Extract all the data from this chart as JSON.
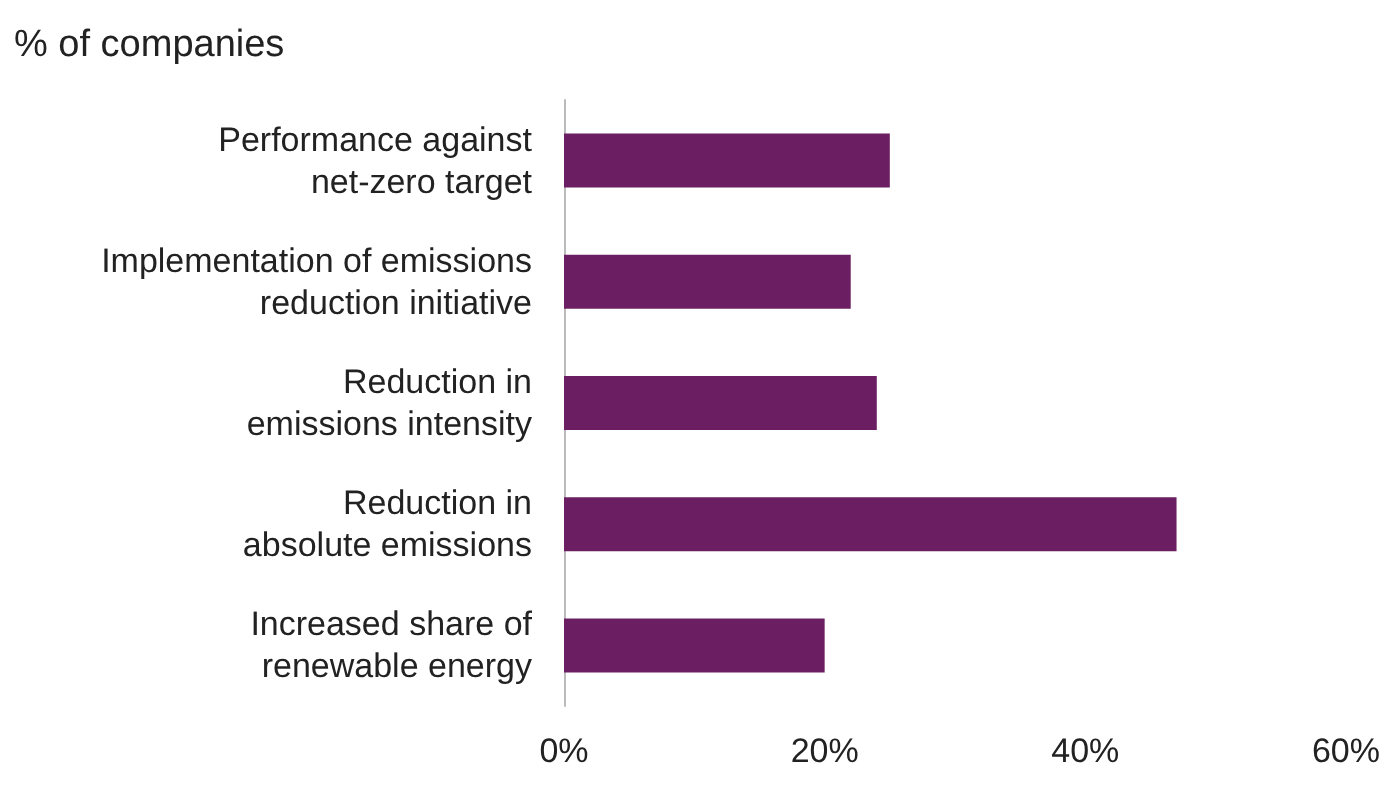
{
  "chart_data": {
    "type": "bar",
    "orientation": "horizontal",
    "title": "% of companies",
    "categories": [
      "Performance against\nnet-zero target",
      "Implementation of emissions\nreduction initiative",
      "Reduction in\nemissions intensity",
      "Reduction in\nabsolute emissions",
      "Increased share of\nrenewable energy"
    ],
    "values": [
      25,
      22,
      24,
      47,
      20
    ],
    "color": "#6b1f62",
    "xlim": [
      0,
      60
    ],
    "xticks": [
      {
        "value": 0,
        "label": "0%"
      },
      {
        "value": 20,
        "label": "20%"
      },
      {
        "value": 40,
        "label": "40%"
      },
      {
        "value": 60,
        "label": "60%"
      }
    ],
    "grid": false
  }
}
